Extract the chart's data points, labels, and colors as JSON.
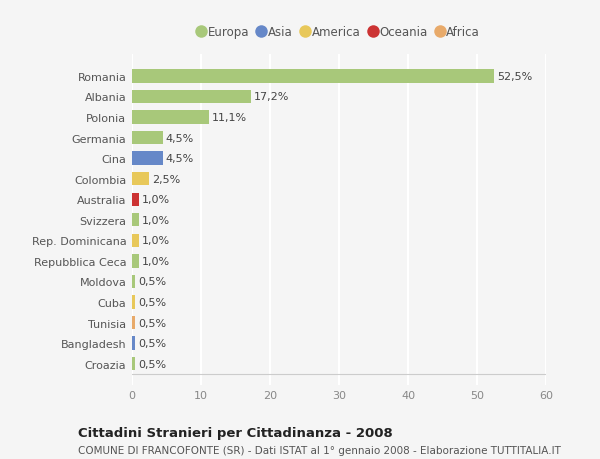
{
  "countries": [
    "Romania",
    "Albania",
    "Polonia",
    "Germania",
    "Cina",
    "Colombia",
    "Australia",
    "Svizzera",
    "Rep. Dominicana",
    "Repubblica Ceca",
    "Moldova",
    "Cuba",
    "Tunisia",
    "Bangladesh",
    "Croazia"
  ],
  "values": [
    52.5,
    17.2,
    11.1,
    4.5,
    4.5,
    2.5,
    1.0,
    1.0,
    1.0,
    1.0,
    0.5,
    0.5,
    0.5,
    0.5,
    0.5
  ],
  "labels": [
    "52,5%",
    "17,2%",
    "11,1%",
    "4,5%",
    "4,5%",
    "2,5%",
    "1,0%",
    "1,0%",
    "1,0%",
    "1,0%",
    "0,5%",
    "0,5%",
    "0,5%",
    "0,5%",
    "0,5%"
  ],
  "continents": [
    "Europa",
    "Europa",
    "Europa",
    "Europa",
    "Asia",
    "America",
    "Oceania",
    "Europa",
    "America",
    "Europa",
    "Europa",
    "America",
    "Africa",
    "Asia",
    "Europa"
  ],
  "colors": {
    "Europa": "#a8c87a",
    "Asia": "#6688c8",
    "America": "#e8c85a",
    "Oceania": "#cc3333",
    "Africa": "#e8aa6a"
  },
  "legend_order": [
    "Europa",
    "Asia",
    "America",
    "Oceania",
    "Africa"
  ],
  "xlim": [
    0,
    60
  ],
  "xticks": [
    0,
    10,
    20,
    30,
    40,
    50,
    60
  ],
  "title": "Cittadini Stranieri per Cittadinanza - 2008",
  "subtitle": "COMUNE DI FRANCOFONTE (SR) - Dati ISTAT al 1° gennaio 2008 - Elaborazione TUTTITALIA.IT",
  "bg_color": "#f5f5f5",
  "grid_color": "#ffffff",
  "bar_height": 0.65,
  "label_fontsize": 8.0,
  "ytick_fontsize": 8.0,
  "xtick_fontsize": 8.0,
  "legend_fontsize": 8.5,
  "title_fontsize": 9.5,
  "subtitle_fontsize": 7.5
}
